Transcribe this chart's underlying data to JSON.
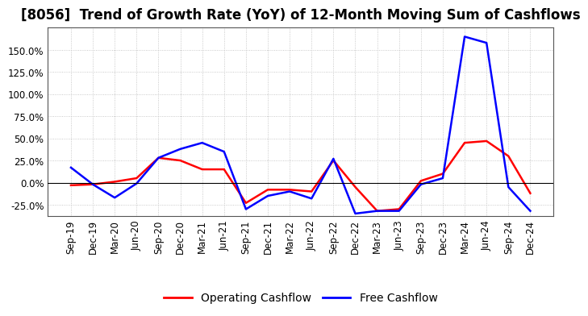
{
  "title": "[8056]  Trend of Growth Rate (YoY) of 12-Month Moving Sum of Cashflows",
  "x_labels": [
    "Sep-19",
    "Dec-19",
    "Mar-20",
    "Jun-20",
    "Sep-20",
    "Dec-20",
    "Mar-21",
    "Jun-21",
    "Sep-21",
    "Dec-21",
    "Mar-22",
    "Jun-22",
    "Sep-22",
    "Dec-22",
    "Mar-23",
    "Jun-23",
    "Sep-23",
    "Dec-23",
    "Mar-24",
    "Jun-24",
    "Sep-24",
    "Dec-24"
  ],
  "operating_cashflow": [
    -3.0,
    -2.0,
    1.0,
    5.0,
    28.0,
    25.0,
    15.0,
    15.0,
    -23.0,
    -8.0,
    -8.0,
    -10.0,
    25.0,
    -5.0,
    -32.0,
    -30.0,
    2.0,
    10.0,
    45.0,
    47.0,
    30.0,
    -12.0
  ],
  "free_cashflow": [
    17.0,
    -2.0,
    -17.0,
    -1.0,
    28.0,
    38.0,
    45.0,
    35.0,
    -30.0,
    -15.0,
    -10.0,
    -18.0,
    27.0,
    -35.0,
    -32.0,
    -32.0,
    -2.0,
    5.0,
    165.0,
    158.0,
    -5.0,
    -32.0
  ],
  "operating_color": "#ff0000",
  "free_color": "#0000ff",
  "background_color": "#ffffff",
  "plot_background": "#ffffff",
  "grid_color": "#aaaaaa",
  "ylim": [
    -37.5,
    175.0
  ],
  "yticks": [
    -25.0,
    0.0,
    25.0,
    50.0,
    75.0,
    100.0,
    125.0,
    150.0
  ],
  "legend_labels": [
    "Operating Cashflow",
    "Free Cashflow"
  ],
  "title_fontsize": 12,
  "tick_fontsize": 8.5,
  "legend_fontsize": 10
}
